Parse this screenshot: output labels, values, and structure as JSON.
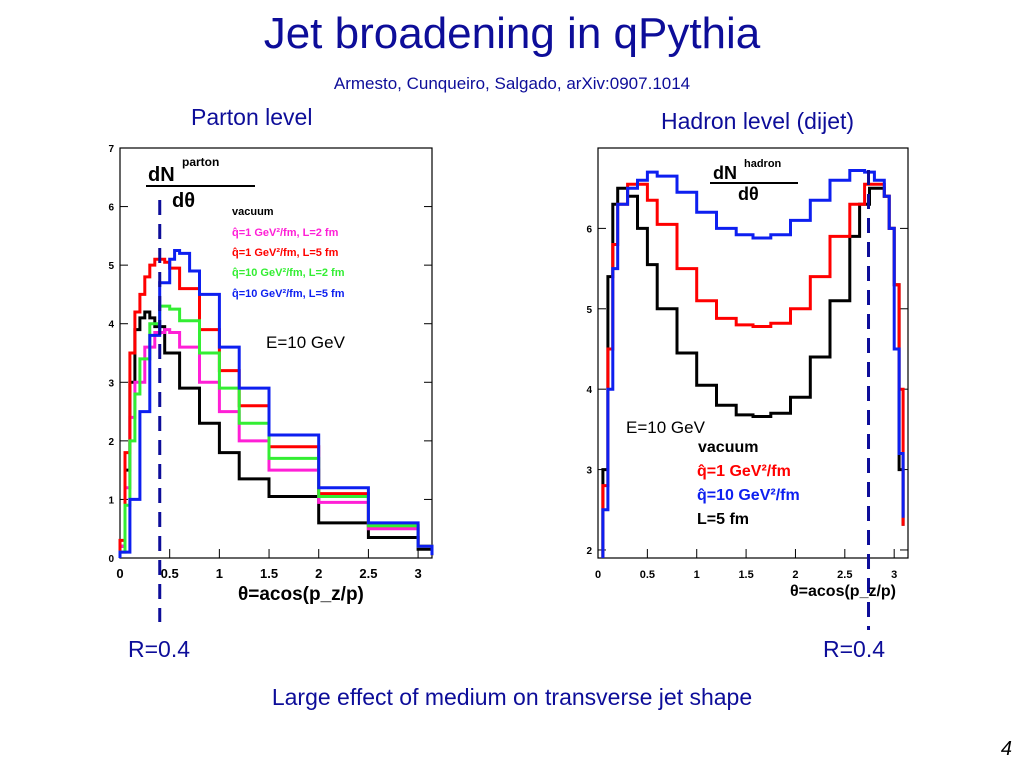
{
  "slide": {
    "title": "Jet broadening in qPythia",
    "subtitle": "Armesto, Cunqueiro, Salgado, arXiv:0907.1014",
    "caption": "Large effect of medium on transverse jet shape",
    "page_number": "4"
  },
  "chart_data": [
    {
      "type": "line",
      "title": "Parton level",
      "ylabel": "dN^parton / dθ",
      "xlabel": "θ=acos(p_z/p)",
      "xlim": [
        0,
        3.14
      ],
      "ylim": [
        0,
        7
      ],
      "xticks": [
        "0",
        "0.5",
        "1",
        "1.5",
        "2",
        "2.5",
        "3"
      ],
      "yticks": [
        "0",
        "1",
        "2",
        "3",
        "4",
        "5",
        "6",
        "7"
      ],
      "energy_label": "E=10 GeV",
      "marker": {
        "x": 0.4,
        "label": "R=0.4"
      },
      "legend_header": "vacuum",
      "series": [
        {
          "name": "vacuum",
          "color": "#000000",
          "x": [
            0.0,
            0.05,
            0.1,
            0.15,
            0.2,
            0.25,
            0.3,
            0.35,
            0.45,
            0.6,
            0.8,
            1.0,
            1.2,
            1.5,
            2.0,
            2.5,
            3.0,
            3.14
          ],
          "y": [
            0.2,
            1.5,
            3.0,
            3.9,
            4.1,
            4.2,
            4.1,
            3.95,
            3.5,
            2.9,
            2.3,
            1.8,
            1.35,
            1.05,
            0.6,
            0.35,
            0.15,
            0.05
          ]
        },
        {
          "name": "q̂=1 GeV²/fm, L=2 fm",
          "color": "#ff1fd6",
          "x": [
            0.0,
            0.05,
            0.1,
            0.15,
            0.25,
            0.35,
            0.45,
            0.5,
            0.6,
            0.8,
            1.0,
            1.2,
            1.5,
            2.0,
            2.5,
            3.0,
            3.14
          ],
          "y": [
            0.2,
            1.2,
            2.4,
            3.0,
            3.6,
            3.85,
            3.9,
            3.85,
            3.6,
            3.0,
            2.5,
            2.0,
            1.5,
            0.95,
            0.5,
            0.2,
            0.05
          ]
        },
        {
          "name": "q̂=1 GeV²/fm, L=5 fm",
          "color": "#ff0000",
          "x": [
            0.0,
            0.05,
            0.1,
            0.15,
            0.2,
            0.25,
            0.3,
            0.35,
            0.4,
            0.45,
            0.5,
            0.6,
            0.8,
            1.0,
            1.2,
            1.5,
            2.0,
            2.5,
            3.0,
            3.14
          ],
          "y": [
            0.3,
            1.8,
            3.5,
            4.2,
            4.5,
            4.8,
            5.0,
            5.1,
            5.1,
            5.05,
            4.95,
            4.6,
            3.9,
            3.2,
            2.6,
            1.9,
            1.1,
            0.55,
            0.2,
            0.05
          ]
        },
        {
          "name": "q̂=10 GeV²/fm, L=2 fm",
          "color": "#33ee33",
          "x": [
            0.0,
            0.05,
            0.1,
            0.15,
            0.2,
            0.3,
            0.4,
            0.5,
            0.6,
            0.8,
            1.0,
            1.2,
            1.5,
            2.0,
            2.5,
            3.0,
            3.14
          ],
          "y": [
            0.1,
            0.9,
            2.0,
            2.8,
            3.4,
            4.0,
            4.3,
            4.25,
            4.05,
            3.5,
            2.9,
            2.3,
            1.7,
            1.05,
            0.55,
            0.2,
            0.05
          ]
        },
        {
          "name": "q̂=10 GeV²/fm, L=5 fm",
          "color": "#0d1ff0",
          "x": [
            0.0,
            0.1,
            0.2,
            0.3,
            0.4,
            0.5,
            0.55,
            0.6,
            0.7,
            0.8,
            1.0,
            1.2,
            1.5,
            2.0,
            2.5,
            3.0,
            3.14
          ],
          "y": [
            0.1,
            1.0,
            2.5,
            3.8,
            4.7,
            5.1,
            5.25,
            5.2,
            4.9,
            4.5,
            3.6,
            2.9,
            2.1,
            1.2,
            0.6,
            0.2,
            0.05
          ]
        }
      ]
    },
    {
      "type": "line",
      "title": "Hadron level (dijet)",
      "ylabel": "dN^hadron / dθ",
      "xlabel": "θ=acos(p_z/p)",
      "xlim": [
        0,
        3.14
      ],
      "ylim": [
        1.9,
        7.0
      ],
      "xticks": [
        "0",
        "0.5",
        "1",
        "1.5",
        "2",
        "2.5",
        "3"
      ],
      "yticks": [
        "2",
        "3",
        "4",
        "5",
        "6"
      ],
      "energy_label": "E=10 GeV",
      "marker": {
        "x": 2.74,
        "label": "R=0.4"
      },
      "legend_entries": [
        "vacuum",
        "q̂=1 GeV²/fm",
        "q̂=10 GeV²/fm",
        "L=5 fm"
      ],
      "series": [
        {
          "name": "vacuum",
          "color": "#000000",
          "x": [
            0.05,
            0.1,
            0.15,
            0.2,
            0.25,
            0.3,
            0.4,
            0.5,
            0.6,
            0.8,
            1.0,
            1.2,
            1.4,
            1.57,
            1.75,
            1.95,
            2.15,
            2.35,
            2.55,
            2.65,
            2.75,
            2.85,
            2.9,
            2.95,
            3.0,
            3.05,
            3.09
          ],
          "y": [
            3.0,
            5.4,
            6.3,
            6.5,
            6.5,
            6.4,
            6.0,
            5.55,
            5.0,
            4.45,
            4.05,
            3.8,
            3.68,
            3.66,
            3.7,
            3.9,
            4.4,
            5.1,
            5.9,
            6.3,
            6.5,
            6.5,
            6.4,
            6.0,
            5.3,
            3.0,
            2.3
          ]
        },
        {
          "name": "q̂=1 GeV²/fm",
          "color": "#ff0000",
          "x": [
            0.05,
            0.1,
            0.15,
            0.2,
            0.3,
            0.4,
            0.5,
            0.6,
            0.8,
            1.0,
            1.2,
            1.4,
            1.57,
            1.75,
            1.95,
            2.15,
            2.35,
            2.55,
            2.7,
            2.8,
            2.9,
            2.95,
            3.0,
            3.05,
            3.09
          ],
          "y": [
            2.8,
            4.5,
            5.8,
            6.3,
            6.55,
            6.55,
            6.35,
            6.05,
            5.5,
            5.1,
            4.88,
            4.8,
            4.78,
            4.82,
            5.0,
            5.4,
            5.9,
            6.3,
            6.55,
            6.55,
            6.4,
            6.0,
            5.3,
            4.0,
            2.3
          ]
        },
        {
          "name": "q̂=10 GeV²/fm",
          "color": "#0d1ff0",
          "x": [
            0.05,
            0.1,
            0.15,
            0.2,
            0.3,
            0.4,
            0.5,
            0.6,
            0.8,
            1.0,
            1.2,
            1.4,
            1.57,
            1.75,
            1.95,
            2.15,
            2.35,
            2.55,
            2.7,
            2.8,
            2.9,
            2.95,
            3.0,
            3.05,
            3.09
          ],
          "y": [
            2.5,
            4.0,
            5.5,
            6.3,
            6.5,
            6.6,
            6.7,
            6.65,
            6.45,
            6.2,
            6.0,
            5.92,
            5.88,
            5.92,
            6.1,
            6.35,
            6.6,
            6.72,
            6.7,
            6.6,
            6.4,
            6.0,
            4.5,
            3.2,
            2.4
          ]
        }
      ]
    }
  ]
}
